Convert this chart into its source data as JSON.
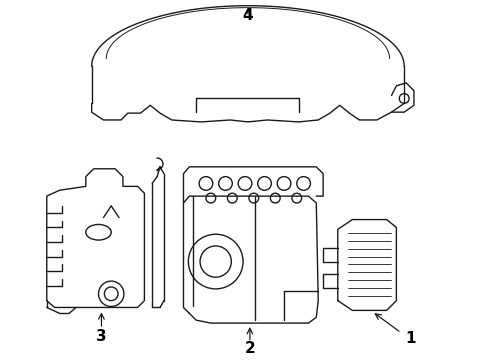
{
  "background_color": "#ffffff",
  "line_color": "#1a1a1a",
  "label_color": "#000000",
  "figsize": [
    4.9,
    3.6
  ],
  "dpi": 100
}
